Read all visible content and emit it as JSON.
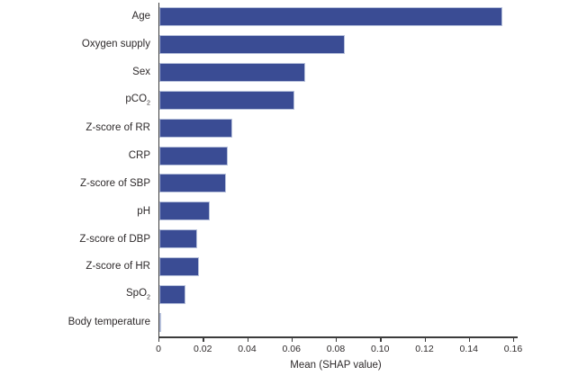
{
  "chart_data": {
    "type": "bar",
    "orientation": "horizontal",
    "title": "",
    "xlabel": "Mean (SHAP value)",
    "ylabel": "",
    "xlim": [
      0,
      0.16
    ],
    "xticks": [
      0,
      0.02,
      0.04,
      0.06,
      0.08,
      0.1,
      0.12,
      0.14,
      0.16
    ],
    "xtick_labels": [
      "0",
      "0.02",
      "0.04",
      "0.06",
      "0.08",
      "0.10",
      "0.12",
      "0.14",
      "0.16"
    ],
    "grid": false,
    "legend": null,
    "categories": [
      {
        "id": "age",
        "label": "Age",
        "sub": ""
      },
      {
        "id": "oxygen-supply",
        "label": "Oxygen supply",
        "sub": ""
      },
      {
        "id": "sex",
        "label": "Sex",
        "sub": ""
      },
      {
        "id": "pco2",
        "label": "pCO",
        "sub": "2"
      },
      {
        "id": "z-score-of-rr",
        "label": "Z-score of RR",
        "sub": ""
      },
      {
        "id": "crp",
        "label": "CRP",
        "sub": ""
      },
      {
        "id": "z-score-of-sbp",
        "label": "Z-score of SBP",
        "sub": ""
      },
      {
        "id": "ph",
        "label": "pH",
        "sub": ""
      },
      {
        "id": "z-score-of-dbp",
        "label": "Z-score of DBP",
        "sub": ""
      },
      {
        "id": "z-score-of-hr",
        "label": "Z-score of HR",
        "sub": ""
      },
      {
        "id": "spo2",
        "label": "SpO",
        "sub": "2"
      },
      {
        "id": "body-temperature",
        "label": "Body temperature",
        "sub": ""
      }
    ],
    "values": [
      0.155,
      0.084,
      0.066,
      0.061,
      0.033,
      0.031,
      0.03,
      0.023,
      0.017,
      0.018,
      0.012,
      0.001
    ],
    "colors": {
      "bar_fill": "#3a4c94",
      "bar_border": "#b6c0db",
      "axis": "#3c3c3c",
      "text": "#2e2a2b",
      "background": "#ffffff"
    }
  }
}
